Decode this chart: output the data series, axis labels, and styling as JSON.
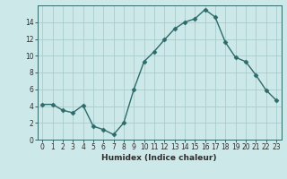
{
  "x": [
    0,
    1,
    2,
    3,
    4,
    5,
    6,
    7,
    8,
    9,
    10,
    11,
    12,
    13,
    14,
    15,
    16,
    17,
    18,
    19,
    20,
    21,
    22,
    23
  ],
  "y": [
    4.2,
    4.2,
    3.5,
    3.2,
    4.1,
    1.6,
    1.2,
    0.6,
    2.0,
    6.0,
    9.3,
    10.5,
    11.9,
    13.2,
    14.0,
    14.4,
    15.5,
    14.6,
    11.6,
    9.8,
    9.3,
    7.7,
    5.9,
    4.7
  ],
  "line_color": "#2d6b6b",
  "marker": "D",
  "marker_size": 2.5,
  "bg_color": "#cce8e8",
  "grid_color": "#aacccc",
  "xlabel": "Humidex (Indice chaleur)",
  "xlim": [
    -0.5,
    23.5
  ],
  "ylim": [
    0,
    16
  ],
  "yticks": [
    0,
    2,
    4,
    6,
    8,
    10,
    12,
    14
  ],
  "xticks": [
    0,
    1,
    2,
    3,
    4,
    5,
    6,
    7,
    8,
    9,
    10,
    11,
    12,
    13,
    14,
    15,
    16,
    17,
    18,
    19,
    20,
    21,
    22,
    23
  ],
  "xlabel_fontsize": 6.5,
  "tick_fontsize": 5.5,
  "line_width": 1.0,
  "spine_color": "#336666"
}
